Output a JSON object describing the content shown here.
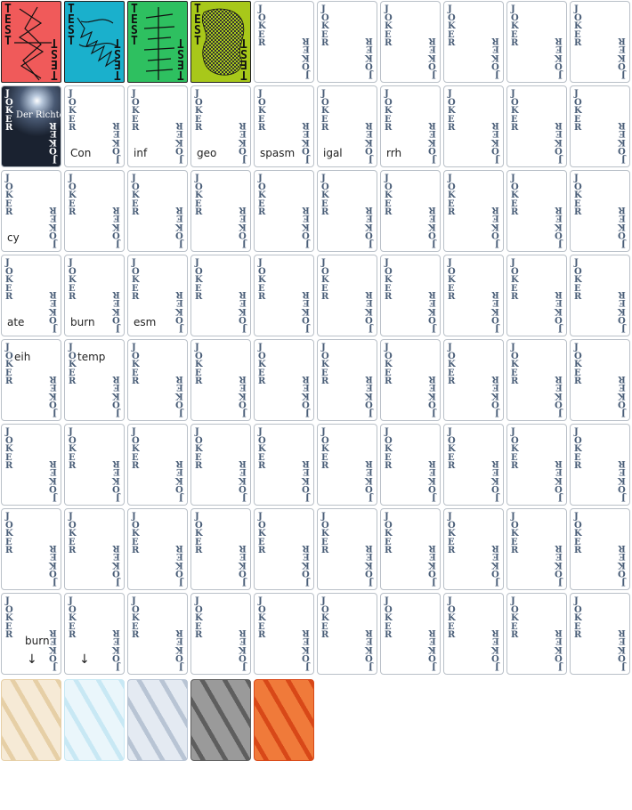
{
  "grid": {
    "cols": 10,
    "rows": 8
  },
  "face_label": "JOKER",
  "test_label": "TEST",
  "photo_card_subtitle": "Der Richter",
  "test_cards": [
    {
      "color": "#f05a5a"
    },
    {
      "color": "#1ab0cc"
    },
    {
      "color": "#2ec060"
    },
    {
      "color": "#a8c81a"
    }
  ],
  "annotations": [
    {
      "row": 1,
      "col": 1,
      "text": "Con"
    },
    {
      "row": 1,
      "col": 2,
      "text": "inf"
    },
    {
      "row": 1,
      "col": 3,
      "text": "geo"
    },
    {
      "row": 1,
      "col": 4,
      "text": "spasm"
    },
    {
      "row": 1,
      "col": 5,
      "text": "igal"
    },
    {
      "row": 1,
      "col": 6,
      "text": "rrh"
    },
    {
      "row": 2,
      "col": 0,
      "text": "cy"
    },
    {
      "row": 3,
      "col": 0,
      "text": "ate"
    },
    {
      "row": 3,
      "col": 1,
      "text": "burn"
    },
    {
      "row": 3,
      "col": 2,
      "text": "esm"
    },
    {
      "row": 4,
      "col": 0,
      "text": "eih"
    },
    {
      "row": 4,
      "col": 1,
      "text": "temp"
    },
    {
      "row": 7,
      "col": 0,
      "text": "burn"
    }
  ],
  "card_backs": [
    {
      "style": "cream",
      "colors": [
        "#f6ead6",
        "#e6cfa6"
      ]
    },
    {
      "style": "ice",
      "colors": [
        "#eaf6fb",
        "#c8e8f4"
      ]
    },
    {
      "style": "silver",
      "colors": [
        "#e4eaf2",
        "#b8c4d4"
      ]
    },
    {
      "style": "steel",
      "colors": [
        "#9a9a9a",
        "#5e5e5e"
      ]
    },
    {
      "style": "flame",
      "colors": [
        "#f07a3a",
        "#d84818"
      ]
    }
  ]
}
